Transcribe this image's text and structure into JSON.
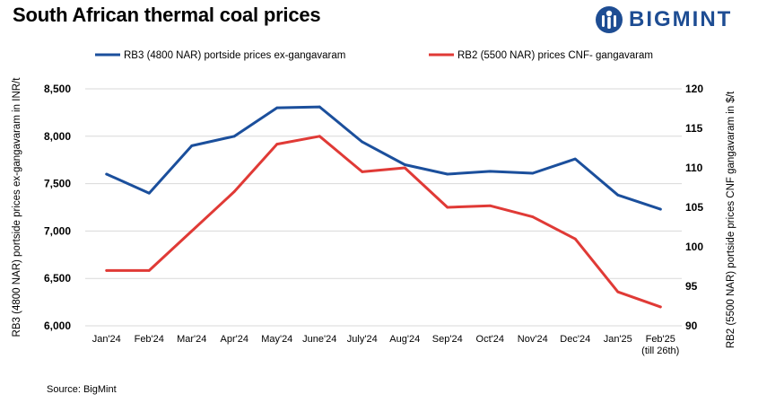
{
  "header": {
    "title": "South African thermal coal prices"
  },
  "brand": {
    "name": "BIGMINT",
    "primary_color": "#1e4d93"
  },
  "footer": {
    "source": "Source: BigMint"
  },
  "chart_data": {
    "type": "line",
    "title": "South African thermal coal prices",
    "categories": [
      "Jan'24",
      "Feb'24",
      "Mar'24",
      "Apr'24",
      "May'24",
      "June'24",
      "July'24",
      "Aug'24",
      "Sep'24",
      "Oct'24",
      "Nov'24",
      "Dec'24",
      "Jan'25",
      "Feb'25"
    ],
    "category_note": {
      "index": 13,
      "text": "(till 26th)"
    },
    "y_left": {
      "label": "RB3 (4800 NAR) portside prices ex-gangavaram in INR/t",
      "min": 6000,
      "max": 8500,
      "ticks": [
        6000,
        6500,
        7000,
        7500,
        8000,
        8500
      ],
      "tick_labels": [
        "6,000",
        "6,500",
        "7,000",
        "7,500",
        "8,000",
        "8,500"
      ]
    },
    "y_right": {
      "label": "RB2 (5500 NAR) portside prices CNF gangavaram  in $/t",
      "min": 90,
      "max": 120,
      "ticks": [
        90,
        95,
        100,
        105,
        110,
        115,
        120
      ],
      "tick_labels": [
        "90",
        "95",
        "100",
        "105",
        "110",
        "115",
        "120"
      ]
    },
    "grid": true,
    "legend_position": "top",
    "series": [
      {
        "name": "RB3 (4800 NAR) portside prices ex-gangavaram",
        "axis": "left",
        "color": "#1b4f9c",
        "values": [
          7600,
          7400,
          7900,
          8000,
          8300,
          8310,
          7940,
          7700,
          7600,
          7630,
          7610,
          7760,
          7380,
          7230
        ]
      },
      {
        "name": "RB2 (5500 NAR) prices CNF- gangavaram",
        "axis": "right",
        "color": "#e03a36",
        "values": [
          97,
          97,
          102,
          107,
          113,
          114,
          109.5,
          110,
          105,
          105.2,
          103.8,
          101,
          94.3,
          92.4
        ]
      }
    ]
  }
}
